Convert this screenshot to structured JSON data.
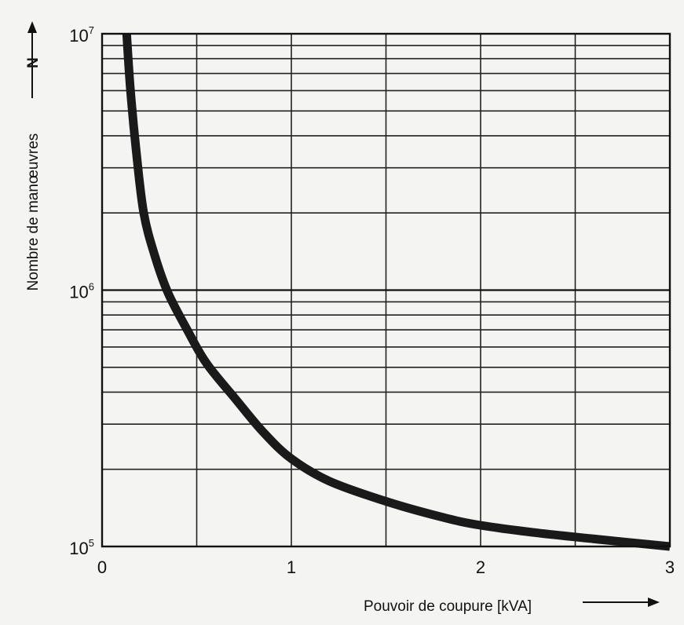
{
  "chart_data": {
    "type": "line",
    "ylabel": "Nombre de manœuvres",
    "ylabel_symbol": "N",
    "xlabel": "Pouvoir de coupure [kVA]",
    "xlim": [
      0,
      3
    ],
    "ylim": [
      100000,
      10000000
    ],
    "yscale": "log",
    "grid": true,
    "x_ticks": [
      {
        "value": 0,
        "label": "0"
      },
      {
        "value": 1,
        "label": "1"
      },
      {
        "value": 2,
        "label": "2"
      },
      {
        "value": 3,
        "label": "3"
      }
    ],
    "y_ticks": [
      {
        "value": 100000,
        "base": "10",
        "exp": "5"
      },
      {
        "value": 1000000,
        "base": "10",
        "exp": "6"
      },
      {
        "value": 10000000,
        "base": "10",
        "exp": "7"
      }
    ],
    "series": [
      {
        "color": "#1a1a1a",
        "x": [
          0.13,
          0.15,
          0.18,
          0.22,
          0.28,
          0.35,
          0.45,
          0.55,
          0.7,
          0.85,
          1.0,
          1.2,
          1.5,
          1.8,
          2.0,
          2.3,
          2.6,
          3.0
        ],
        "y": [
          10000000,
          6000000,
          3500000,
          2000000,
          1350000,
          970000,
          700000,
          520000,
          380000,
          280000,
          220000,
          180000,
          150000,
          130000,
          121000,
          113000,
          107000,
          100000
        ]
      }
    ]
  }
}
